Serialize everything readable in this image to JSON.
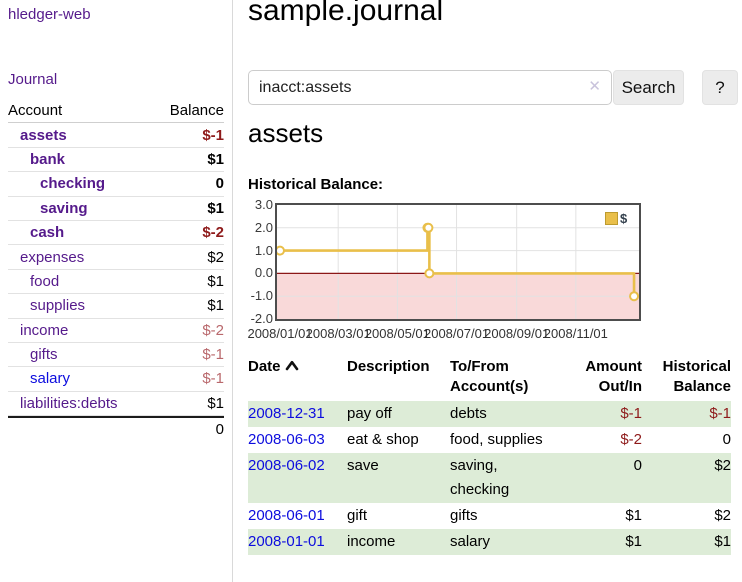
{
  "app": {
    "brand": "hledger-web"
  },
  "nav": {
    "journal": "Journal"
  },
  "sidebar": {
    "header": {
      "account": "Account",
      "balance": "Balance"
    },
    "accounts": [
      {
        "name": "assets",
        "depth": 1,
        "bold": true,
        "balance": "$-1"
      },
      {
        "name": "bank",
        "depth": 2,
        "bold": true,
        "balance": "$1"
      },
      {
        "name": "checking",
        "depth": 3,
        "bold": true,
        "balance": "0"
      },
      {
        "name": "saving",
        "depth": 3,
        "bold": true,
        "balance": "$1"
      },
      {
        "name": "cash",
        "depth": 2,
        "bold": true,
        "balance": "$-2"
      },
      {
        "name": "expenses",
        "depth": 1,
        "bold": false,
        "balance": "$2"
      },
      {
        "name": "food",
        "depth": 2,
        "bold": false,
        "balance": "$1"
      },
      {
        "name": "supplies",
        "depth": 2,
        "bold": false,
        "balance": "$1"
      },
      {
        "name": "income",
        "depth": 1,
        "bold": false,
        "balance": "$-2"
      },
      {
        "name": "gifts",
        "depth": 2,
        "bold": false,
        "balance": "$-1"
      },
      {
        "name": "salary",
        "depth": 2,
        "bold": false,
        "balance": "$-1",
        "unvisited": true
      },
      {
        "name": "liabilities:debts",
        "depth": 1,
        "bold": false,
        "balance": "$1"
      }
    ],
    "total": "0"
  },
  "header": {
    "title": "sample.journal"
  },
  "search": {
    "value": "inacct:assets",
    "clear_icon": "✕",
    "button": "Search",
    "help_button": "?"
  },
  "account_page": {
    "heading": "assets",
    "chart_label": "Historical Balance:"
  },
  "chart_data": {
    "type": "line",
    "step": true,
    "title": "Historical Balance:",
    "series": [
      {
        "name": "$",
        "color": "#e9bf4a",
        "points": [
          [
            "2008/01/01",
            1
          ],
          [
            "2008/06/01",
            2
          ],
          [
            "2008/06/02",
            2
          ],
          [
            "2008/06/03",
            0
          ],
          [
            "2008/12/31",
            -1
          ]
        ]
      }
    ],
    "ylim": [
      -2,
      3
    ],
    "yticks": [
      "3.0",
      "2.0",
      "1.0",
      "0.0",
      "-1.0",
      "-2.0"
    ],
    "xticks": [
      "2008/01/01",
      "2008/03/01",
      "2008/05/01",
      "2008/07/01",
      "2008/09/01",
      "2008/11/01"
    ],
    "legend": {
      "label": "$",
      "position": "top-right"
    },
    "colors": {
      "line": "#e9bf4a",
      "marker_fill": "#ffffff",
      "grid": "#e2e2e2",
      "negative_region": "#f9d9d9",
      "zero_line": "#8c1717",
      "border": "#4d4d4d"
    }
  },
  "register": {
    "headers": {
      "date": [
        "Date"
      ],
      "sort": "asc",
      "description": [
        "Description"
      ],
      "accounts": [
        "To/From",
        "Account(s)"
      ],
      "amount": [
        "Amount",
        "Out/In"
      ],
      "balance": [
        "Historical",
        "Balance"
      ]
    },
    "rows": [
      {
        "date": "2008-12-31",
        "description": "pay off",
        "accounts": "debts",
        "amount": "$-1",
        "balance": "$-1",
        "shade": true,
        "wrap": false
      },
      {
        "date": "2008-06-03",
        "description": "eat & shop",
        "accounts": "food, supplies",
        "amount": "$-2",
        "balance": "0",
        "shade": false,
        "wrap": false
      },
      {
        "date": "2008-06-02",
        "description": "save",
        "accounts": "saving, checking",
        "amount": "0",
        "balance": "$2",
        "shade": true,
        "wrap": true
      },
      {
        "date": "2008-06-01",
        "description": "gift",
        "accounts": "gifts",
        "amount": "$1",
        "balance": "$2",
        "shade": false,
        "wrap": false
      },
      {
        "date": "2008-01-01",
        "description": "income",
        "accounts": "salary",
        "amount": "$1",
        "balance": "$1",
        "shade": true,
        "wrap": false
      }
    ]
  },
  "colors": {
    "link_visited": "#551a8b",
    "link": "#0d0dde",
    "negative": "#8e1a1a",
    "negative_muted": "#b9686c",
    "row_shade": "#ddecd7"
  }
}
